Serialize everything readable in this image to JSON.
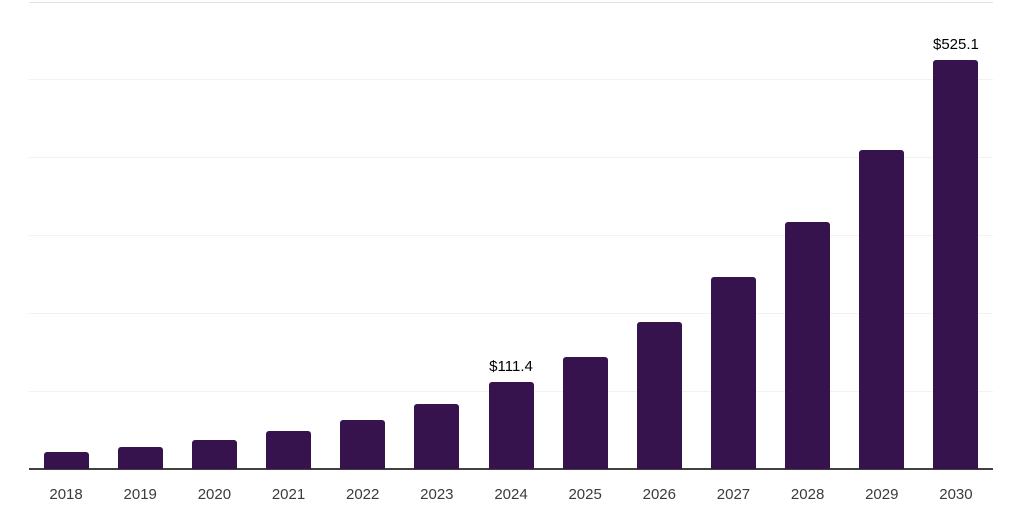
{
  "chart_data": {
    "type": "bar",
    "title": "",
    "xlabel": "",
    "ylabel": "",
    "categories": [
      "2018",
      "2019",
      "2020",
      "2021",
      "2022",
      "2023",
      "2024",
      "2025",
      "2026",
      "2027",
      "2028",
      "2029",
      "2030"
    ],
    "values": [
      22.5,
      28.3,
      36.8,
      48.4,
      63.4,
      83.6,
      111.4,
      144.2,
      188.7,
      246.4,
      317.2,
      410.2,
      525.1
    ],
    "data_labels": [
      "",
      "",
      "",
      "",
      "",
      "",
      "$111.4",
      "",
      "",
      "",
      "",
      "",
      "$525.1"
    ],
    "ylim": [
      0,
      600
    ],
    "gridline_values": [
      100,
      200,
      300,
      400,
      500,
      600
    ],
    "grid": "horizontal",
    "legend": "none",
    "colors": {
      "bar": "#37134E",
      "gridline": "#f2f2f2",
      "top_gridline": "#e2e2e2",
      "axis_line": "#414141",
      "tick_label": "#3b3b3b",
      "value_label": "#000000",
      "background": "#ffffff"
    }
  }
}
